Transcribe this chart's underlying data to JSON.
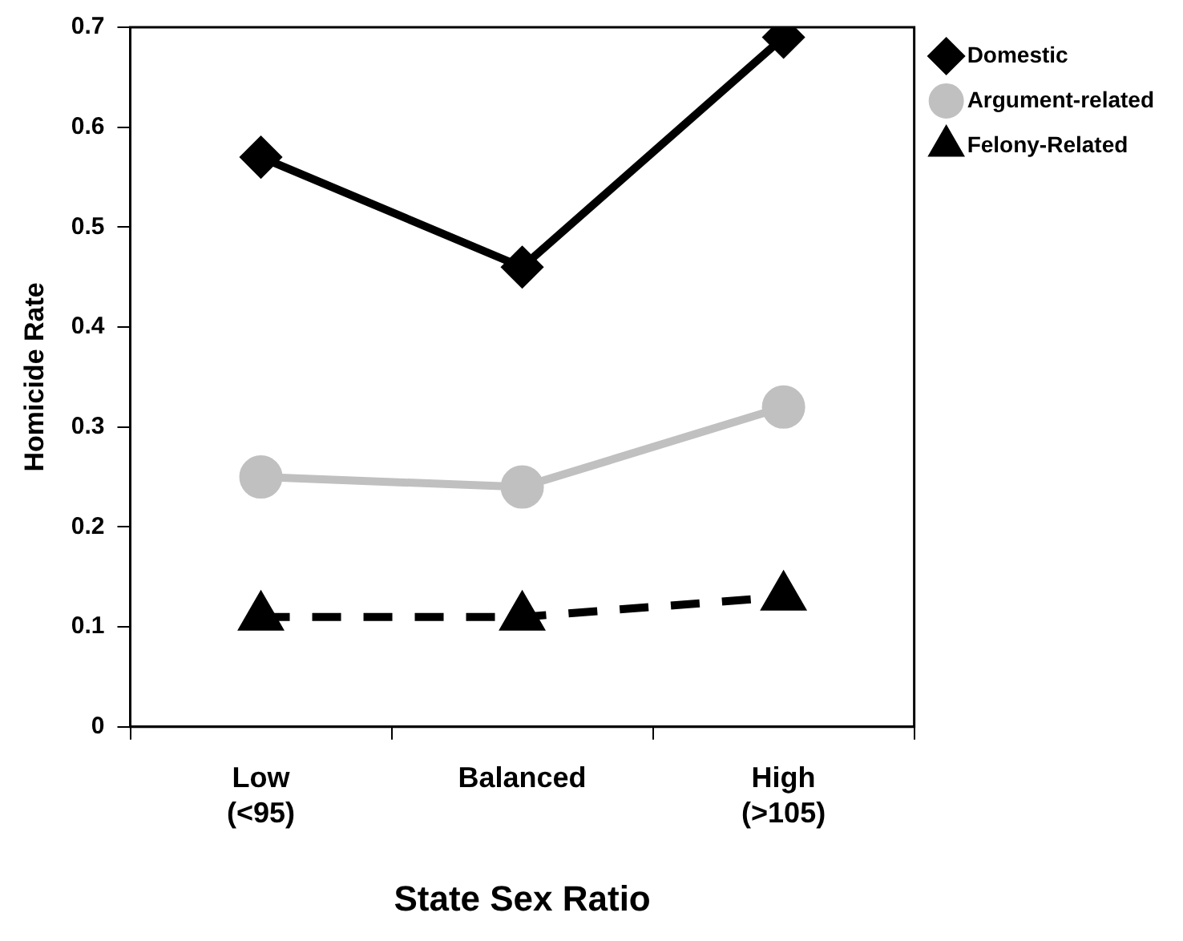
{
  "chart_data": {
    "type": "line",
    "xlabel": "State Sex Ratio",
    "ylabel": "Homicide Rate",
    "categories": [
      "Low\n(<95)",
      "Balanced",
      "High\n(>105)"
    ],
    "series": [
      {
        "name": "Domestic",
        "color": "#000000",
        "values": [
          0.57,
          0.46,
          0.69
        ],
        "marker": "diamond",
        "line_style": "solid"
      },
      {
        "name": "Argument-related",
        "color": "#c0c0c0",
        "values": [
          0.25,
          0.24,
          0.32
        ],
        "marker": "circle",
        "line_style": "solid"
      },
      {
        "name": "Felony-Related",
        "color": "#000000",
        "values": [
          0.11,
          0.11,
          0.13
        ],
        "marker": "triangle",
        "line_style": "dashed"
      }
    ],
    "ylim": [
      0,
      0.7
    ],
    "yticks": [
      0,
      0.1,
      0.2,
      0.3,
      0.4,
      0.5,
      0.6,
      0.7
    ],
    "grid": false,
    "legend": "right"
  }
}
